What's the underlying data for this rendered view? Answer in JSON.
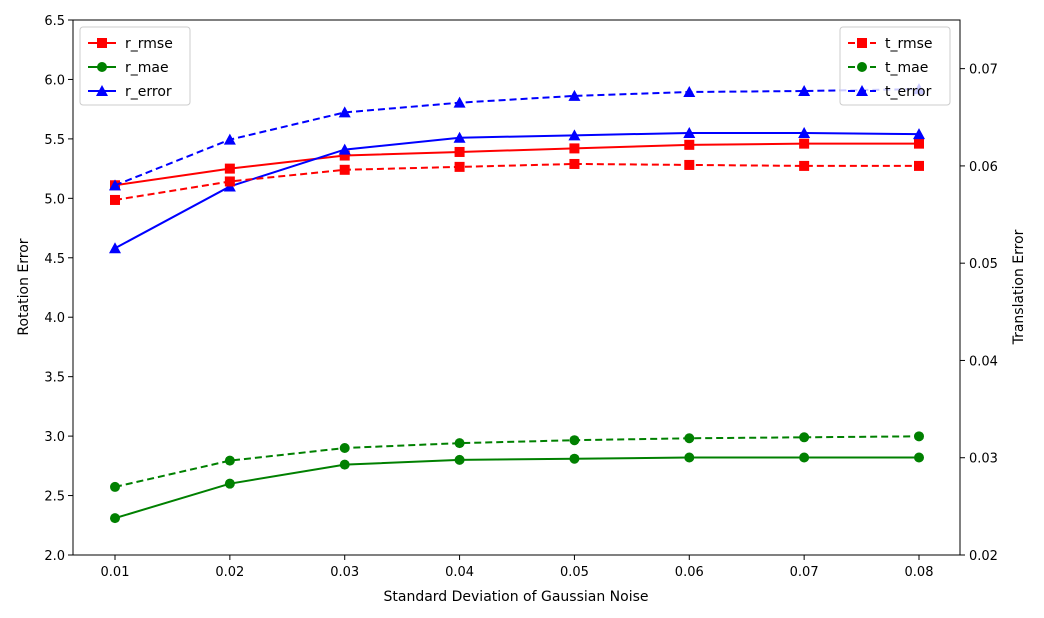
{
  "chart_data": {
    "type": "line",
    "xlabel": "Standard Deviation of Gaussian Noise",
    "ylabel_left": "Rotation Error",
    "ylabel_right": "Translation Error",
    "x": [
      0.01,
      0.02,
      0.03,
      0.04,
      0.05,
      0.06,
      0.07,
      0.08
    ],
    "x_ticks": [
      "0.01",
      "0.02",
      "0.03",
      "0.04",
      "0.05",
      "0.06",
      "0.07",
      "0.08"
    ],
    "ylim_left": [
      2.0,
      6.5
    ],
    "yticks_left": [
      "2.0",
      "2.5",
      "3.0",
      "3.5",
      "4.0",
      "4.5",
      "5.0",
      "5.5",
      "6.0",
      "6.5"
    ],
    "ylim_right": [
      0.02,
      0.075
    ],
    "yticks_right": [
      "0.02",
      "0.03",
      "0.04",
      "0.05",
      "0.06",
      "0.07"
    ],
    "grid": false,
    "legend_left": "top-left",
    "legend_right": "top-right",
    "series": [
      {
        "name": "r_rmse",
        "axis": "left",
        "color": "#ff0000",
        "dash": false,
        "marker": "square",
        "values": [
          5.11,
          5.25,
          5.36,
          5.39,
          5.42,
          5.45,
          5.46,
          5.46
        ]
      },
      {
        "name": "r_mae",
        "axis": "left",
        "color": "#008000",
        "dash": false,
        "marker": "circle",
        "values": [
          2.31,
          2.6,
          2.76,
          2.8,
          2.81,
          2.82,
          2.82,
          2.82
        ]
      },
      {
        "name": "r_error",
        "axis": "left",
        "color": "#0000ff",
        "dash": false,
        "marker": "triangle",
        "values": [
          4.58,
          5.1,
          5.41,
          5.51,
          5.53,
          5.55,
          5.55,
          5.54
        ]
      },
      {
        "name": "t_rmse",
        "axis": "right",
        "color": "#ff0000",
        "dash": true,
        "marker": "square",
        "values": [
          0.0565,
          0.0584,
          0.0596,
          0.0599,
          0.0602,
          0.0601,
          0.06,
          0.06
        ]
      },
      {
        "name": "t_mae",
        "axis": "right",
        "color": "#008000",
        "dash": true,
        "marker": "circle",
        "values": [
          0.027,
          0.0297,
          0.031,
          0.0315,
          0.0318,
          0.032,
          0.0321,
          0.0322
        ]
      },
      {
        "name": "t_error",
        "axis": "right",
        "color": "#0000ff",
        "dash": true,
        "marker": "triangle",
        "values": [
          0.058,
          0.0627,
          0.0655,
          0.0665,
          0.0672,
          0.0676,
          0.0677,
          0.0679
        ]
      }
    ]
  }
}
